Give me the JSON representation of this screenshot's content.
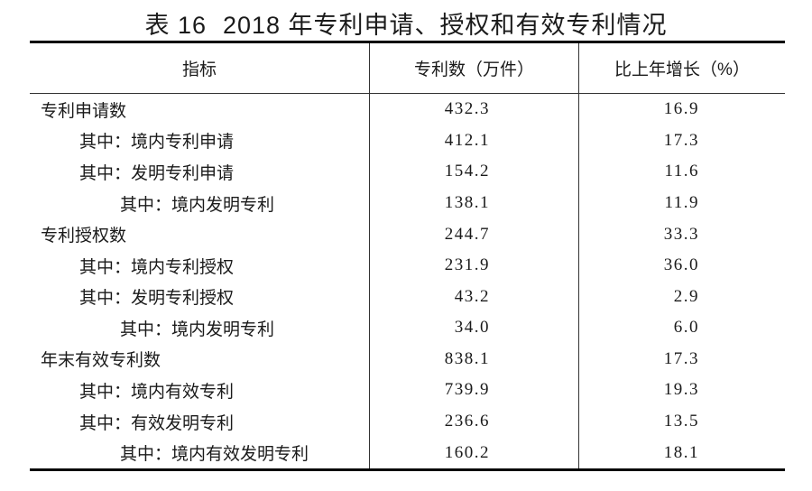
{
  "title": {
    "table_no": "表 16",
    "text": "2018 年专利申请、授权和有效专利情况"
  },
  "table": {
    "headers": {
      "indicator": "指标",
      "patent_count": "专利数（万件）",
      "growth": "比上年增长（%）"
    },
    "rows": [
      {
        "label": "专利申请数",
        "value": "432.3",
        "growth": "16.9"
      },
      {
        "label": "其中：境内专利申请",
        "value": "412.1",
        "growth": "17.3"
      },
      {
        "label": "其中：发明专利申请",
        "value": "154.2",
        "growth": "11.6"
      },
      {
        "label": "其中：境内发明专利",
        "value": "138.1",
        "growth": "11.9"
      },
      {
        "label": "专利授权数",
        "value": "244.7",
        "growth": "33.3"
      },
      {
        "label": "其中：境内专利授权",
        "value": "231.9",
        "growth": "36.0"
      },
      {
        "label": "其中：发明专利授权",
        "value": "43.2",
        "growth": "2.9"
      },
      {
        "label": "其中：境内发明专利",
        "value": "34.0",
        "growth": "6.0"
      },
      {
        "label": "年末有效专利数",
        "value": "838.1",
        "growth": "17.3"
      },
      {
        "label": "其中：境内有效专利",
        "value": "739.9",
        "growth": "19.3"
      },
      {
        "label": "其中：有效发明专利",
        "value": "236.6",
        "growth": "13.5"
      },
      {
        "label": "其中：境内有效发明专利",
        "value": "160.2",
        "growth": "18.1"
      }
    ]
  },
  "chart_data": {
    "type": "table",
    "title": "表 16 2018 年专利申请、授权和有效专利情况",
    "columns": [
      "指标",
      "专利数（万件）",
      "比上年增长（%）"
    ],
    "rows": [
      [
        "专利申请数",
        432.3,
        16.9
      ],
      [
        "其中：境内专利申请",
        412.1,
        17.3
      ],
      [
        "其中：发明专利申请",
        154.2,
        11.6
      ],
      [
        "其中：境内发明专利",
        138.1,
        11.9
      ],
      [
        "专利授权数",
        244.7,
        33.3
      ],
      [
        "其中：境内专利授权",
        231.9,
        36.0
      ],
      [
        "其中：发明专利授权",
        43.2,
        2.9
      ],
      [
        "其中：境内发明专利",
        34.0,
        6.0
      ],
      [
        "年末有效专利数",
        838.1,
        17.3
      ],
      [
        "其中：境内有效专利",
        739.9,
        19.3
      ],
      [
        "其中：有效发明专利",
        236.6,
        13.5
      ],
      [
        "其中：境内有效发明专利",
        160.2,
        18.1
      ]
    ]
  }
}
